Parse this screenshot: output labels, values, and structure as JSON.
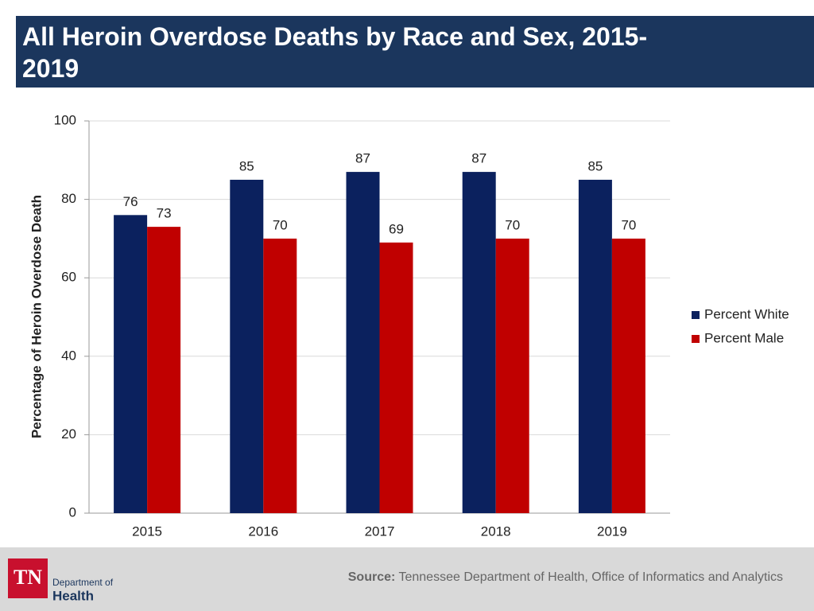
{
  "chart_data": {
    "type": "bar",
    "title": "All Heroin Overdose Deaths by Race and Sex, 2015-2019",
    "y_label": "Percentage of Heroin Overdose Death",
    "categories": [
      "2015",
      "2016",
      "2017",
      "2018",
      "2019"
    ],
    "series": [
      {
        "name": "Percent White",
        "color": "#0b215e",
        "values": [
          76,
          85,
          87,
          87,
          85
        ]
      },
      {
        "name": "Percent Male",
        "color": "#c00000",
        "values": [
          73,
          70,
          69,
          70,
          70
        ]
      }
    ],
    "ylim": [
      0,
      100
    ],
    "yticks": [
      0,
      20,
      40,
      60,
      80,
      100
    ],
    "grid": true,
    "legend": "right"
  },
  "footer": {
    "source_label": "Source:",
    "source_text": "Tennessee Department of Health, Office of Informatics and Analytics",
    "logo_mark": "TN",
    "logo_line1": "Department of",
    "logo_line2": "Health"
  }
}
